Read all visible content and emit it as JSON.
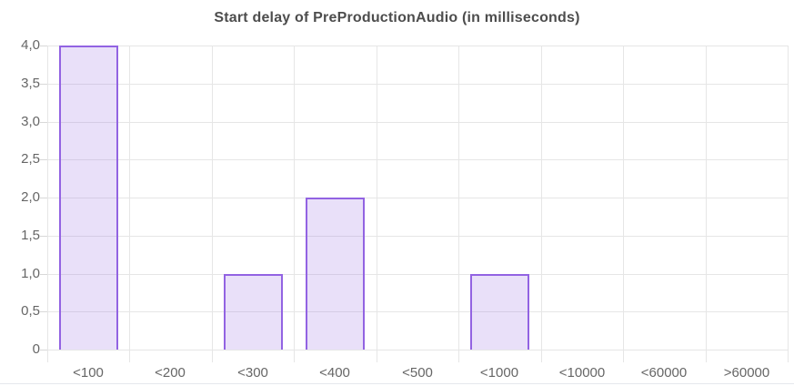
{
  "chart_data": {
    "type": "bar",
    "title": "Start delay of PreProductionAudio (in milliseconds)",
    "categories": [
      "<100",
      "<200",
      "<300",
      "<400",
      "<500",
      "<1000",
      "<10000",
      "<60000",
      ">60000"
    ],
    "values": [
      4,
      0,
      1,
      2,
      0,
      1,
      0,
      0,
      0
    ],
    "xlabel": "",
    "ylabel": "",
    "ylim": [
      0,
      4
    ],
    "ytick_step": 0.5,
    "ytick_labels": [
      "0",
      "0,5",
      "1,0",
      "1,5",
      "2,0",
      "2,5",
      "3,0",
      "3,5",
      "4,0"
    ],
    "decimal_separator": ",",
    "grid": true,
    "legend_position": "none",
    "colors": {
      "background": "#ffffff",
      "bar_border": "#9263e2",
      "bar_fill_base": "#9263e2",
      "bar_fill_alpha": 0.2,
      "gridline": "#e6e6e6",
      "axis_line": "#d8d8d8",
      "title_text": "#4d4d4d",
      "axis_text": "#666666",
      "bottom_rule": "#e5e8ec"
    }
  }
}
